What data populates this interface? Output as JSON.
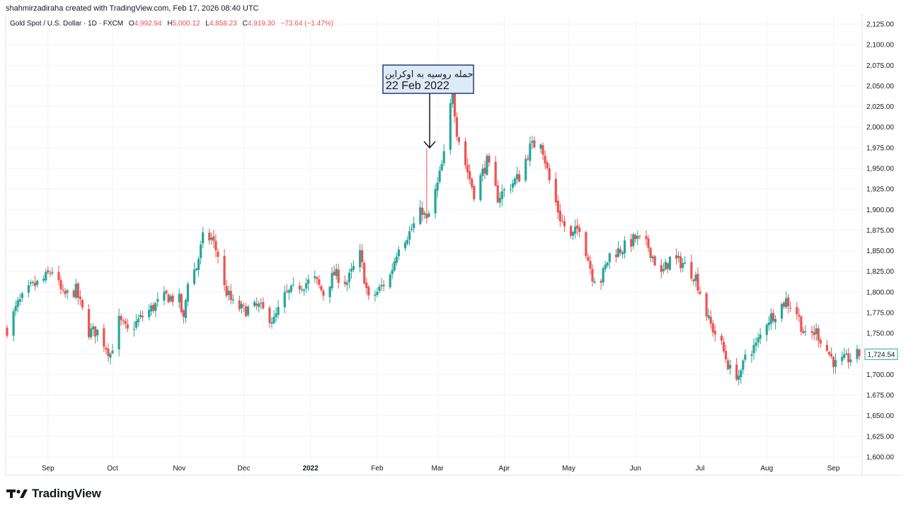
{
  "header": {
    "credit": "shahmirzadiraha created with TradingView.com, Feb 17, 2026 08:40 UTC"
  },
  "legend": {
    "symbol": "Gold Spot / U.S. Dollar · 1D · FXCM",
    "o_label": "O",
    "o_value": "4,992.94",
    "h_label": "H",
    "h_value": "5,000.12",
    "l_label": "L",
    "l_value": "4,858.23",
    "c_label": "C",
    "c_value": "4,919.30",
    "change": "−73.64 (−1.47%)"
  },
  "annotation": {
    "line1": "حمله روسیه به اوکراین",
    "line2": "22 Feb 2022"
  },
  "footer": {
    "brand": "TradingView",
    "logo_icon": "tradingview-logo-icon"
  },
  "colors": {
    "up": "#26a69a",
    "down": "#ef5350",
    "last_price": "#26a69a",
    "annotation_bg": "#dfeaf8",
    "annotation_border": "#1c3f7a"
  },
  "chart_data": {
    "type": "candlestick",
    "last_price": "1,724.54",
    "ylim": [
      1590,
      2135
    ],
    "y_ticks": [
      "2,125.00",
      "2,100.00",
      "2,075.00",
      "2,050.00",
      "2,025.00",
      "2,000.00",
      "1,975.00",
      "1,950.00",
      "1,925.00",
      "1,900.00",
      "1,875.00",
      "1,850.00",
      "1,825.00",
      "1,800.00",
      "1,775.00",
      "1,750.00",
      "1,725.00",
      "1,700.00",
      "1,675.00",
      "1,650.00",
      "1,625.00",
      "1,600.00"
    ],
    "x_ticks": [
      {
        "label": "Sep",
        "date": "2021-09-01"
      },
      {
        "label": "Oct",
        "date": "2021-10-01"
      },
      {
        "label": "Nov",
        "date": "2021-11-01"
      },
      {
        "label": "Dec",
        "date": "2021-12-01"
      },
      {
        "label": "2022",
        "date": "2022-01-01"
      },
      {
        "label": "Feb",
        "date": "2022-02-01"
      },
      {
        "label": "Mar",
        "date": "2022-03-01"
      },
      {
        "label": "Apr",
        "date": "2022-04-01"
      },
      {
        "label": "May",
        "date": "2022-05-01"
      },
      {
        "label": "Jun",
        "date": "2022-06-01"
      },
      {
        "label": "Jul",
        "date": "2022-07-01"
      },
      {
        "label": "Aug",
        "date": "2022-08-01"
      },
      {
        "label": "Sep",
        "date": "2022-09-01"
      }
    ],
    "x_range": [
      "2021-08-13",
      "2022-09-13"
    ],
    "close_path": [
      [
        "2021-08-13",
        1755
      ],
      [
        "2021-08-18",
        1785
      ],
      [
        "2021-08-24",
        1805
      ],
      [
        "2021-08-30",
        1815
      ],
      [
        "2021-09-03",
        1827
      ],
      [
        "2021-09-08",
        1795
      ],
      [
        "2021-09-14",
        1802
      ],
      [
        "2021-09-20",
        1752
      ],
      [
        "2021-09-24",
        1752
      ],
      [
        "2021-09-30",
        1725
      ],
      [
        "2021-10-04",
        1765
      ],
      [
        "2021-10-08",
        1752
      ],
      [
        "2021-10-14",
        1768
      ],
      [
        "2021-10-20",
        1782
      ],
      [
        "2021-10-26",
        1795
      ],
      [
        "2021-11-01",
        1790
      ],
      [
        "2021-11-03",
        1765
      ],
      [
        "2021-11-05",
        1815
      ],
      [
        "2021-11-09",
        1830
      ],
      [
        "2021-11-12",
        1865
      ],
      [
        "2021-11-16",
        1865
      ],
      [
        "2021-11-19",
        1845
      ],
      [
        "2021-11-22",
        1805
      ],
      [
        "2021-11-26",
        1785
      ],
      [
        "2021-12-01",
        1778
      ],
      [
        "2021-12-08",
        1782
      ],
      [
        "2021-12-15",
        1765
      ],
      [
        "2021-12-20",
        1795
      ],
      [
        "2021-12-27",
        1808
      ],
      [
        "2022-01-03",
        1815
      ],
      [
        "2022-01-07",
        1798
      ],
      [
        "2022-01-12",
        1822
      ],
      [
        "2022-01-18",
        1812
      ],
      [
        "2022-01-24",
        1845
      ],
      [
        "2022-01-28",
        1790
      ],
      [
        "2022-02-01",
        1800
      ],
      [
        "2022-02-07",
        1820
      ],
      [
        "2022-02-11",
        1858
      ],
      [
        "2022-02-16",
        1872
      ],
      [
        "2022-02-22",
        1900
      ],
      [
        "2022-02-24",
        1885
      ],
      [
        "2022-03-01",
        1930
      ],
      [
        "2022-03-04",
        1965
      ],
      [
        "2022-03-08",
        2045
      ],
      [
        "2022-03-10",
        1995
      ],
      [
        "2022-03-14",
        1955
      ],
      [
        "2022-03-18",
        1920
      ],
      [
        "2022-03-24",
        1958
      ],
      [
        "2022-03-29",
        1915
      ],
      [
        "2022-04-04",
        1930
      ],
      [
        "2022-04-08",
        1940
      ],
      [
        "2022-04-13",
        1975
      ],
      [
        "2022-04-18",
        1985
      ],
      [
        "2022-04-22",
        1935
      ],
      [
        "2022-04-27",
        1890
      ],
      [
        "2022-05-02",
        1865
      ],
      [
        "2022-05-06",
        1880
      ],
      [
        "2022-05-12",
        1820
      ],
      [
        "2022-05-16",
        1815
      ],
      [
        "2022-05-20",
        1845
      ],
      [
        "2022-05-26",
        1853
      ],
      [
        "2022-06-01",
        1865
      ],
      [
        "2022-06-07",
        1855
      ],
      [
        "2022-06-13",
        1820
      ],
      [
        "2022-06-17",
        1840
      ],
      [
        "2022-06-23",
        1835
      ],
      [
        "2022-06-29",
        1818
      ],
      [
        "2022-07-05",
        1765
      ],
      [
        "2022-07-11",
        1735
      ],
      [
        "2022-07-15",
        1705
      ],
      [
        "2022-07-20",
        1698
      ],
      [
        "2022-07-22",
        1725
      ],
      [
        "2022-07-27",
        1735
      ],
      [
        "2022-08-01",
        1765
      ],
      [
        "2022-08-05",
        1775
      ],
      [
        "2022-08-10",
        1790
      ],
      [
        "2022-08-15",
        1775
      ],
      [
        "2022-08-19",
        1745
      ],
      [
        "2022-08-24",
        1752
      ],
      [
        "2022-08-30",
        1725
      ],
      [
        "2022-09-02",
        1712
      ],
      [
        "2022-09-07",
        1718
      ],
      [
        "2022-09-13",
        1724.54
      ]
    ]
  }
}
